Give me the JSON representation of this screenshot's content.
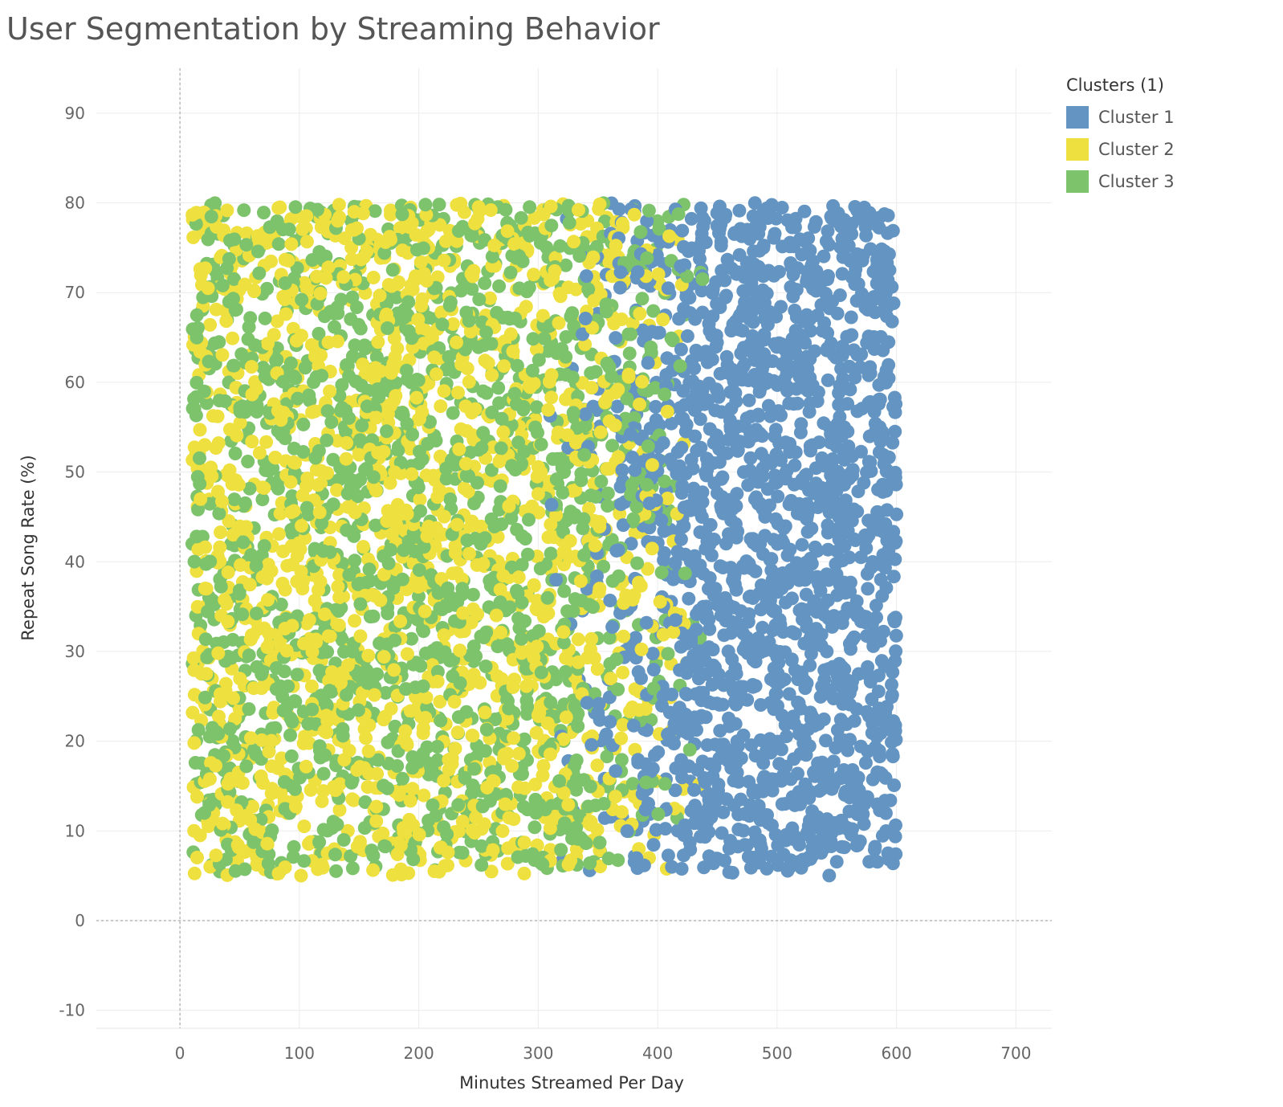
{
  "chart_data": {
    "type": "scatter",
    "title": "User Segmentation by Streaming Behavior",
    "xlabel": "Minutes Streamed Per Day",
    "ylabel": "Repeat Song Rate (%)",
    "xlim": [
      -70,
      730
    ],
    "ylim": [
      -12,
      95
    ],
    "x_ticks": [
      "0",
      "100",
      "200",
      "300",
      "400",
      "500",
      "600",
      "700"
    ],
    "y_ticks": [
      "-10",
      "0",
      "10",
      "20",
      "30",
      "40",
      "50",
      "60",
      "70",
      "80",
      "90"
    ],
    "grid": true,
    "zero_lines": "dashed",
    "legend": {
      "title": "Clusters (1)",
      "placement": "right",
      "items": [
        {
          "label": "Cluster 1",
          "color": "#6495C2"
        },
        {
          "label": "Cluster 2",
          "color": "#EEE03E"
        },
        {
          "label": "Cluster 3",
          "color": "#7DC36B"
        }
      ]
    },
    "series": [
      {
        "name": "Cluster 1",
        "color": "#6495C2",
        "x_range": [
          300,
          600
        ],
        "y_range": [
          5,
          80
        ],
        "approx_points": 1600
      },
      {
        "name": "Cluster 2",
        "color": "#EEE03E",
        "x_range": [
          10,
          450
        ],
        "y_range": [
          5,
          80
        ],
        "approx_points": 1700
      },
      {
        "name": "Cluster 3",
        "color": "#7DC36B",
        "x_range": [
          10,
          470
        ],
        "y_range": [
          5,
          80
        ],
        "approx_points": 1700
      }
    ]
  }
}
